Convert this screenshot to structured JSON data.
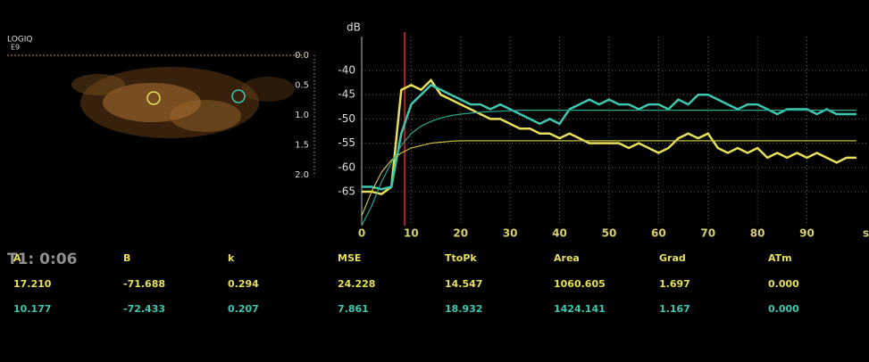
{
  "image": {
    "brand": "LOGIQ",
    "model": "E9",
    "depth_labels": [
      "0.0",
      "0.5",
      "1.0",
      "1.5",
      "2.0"
    ]
  },
  "chart_data": {
    "type": "line",
    "ylabel": "dB",
    "xlabel": "s",
    "x": [
      0,
      2,
      4,
      6,
      8,
      10,
      12,
      14,
      16,
      18,
      20,
      22,
      24,
      26,
      28,
      30,
      32,
      34,
      36,
      38,
      40,
      42,
      44,
      46,
      48,
      50,
      52,
      54,
      56,
      58,
      60,
      62,
      64,
      66,
      68,
      70,
      72,
      74,
      76,
      78,
      80,
      82,
      84,
      86,
      88,
      90,
      92,
      94,
      96,
      98,
      100
    ],
    "series": [
      {
        "color": "#e6e05a",
        "values": [
          -65,
          -65,
          -65.5,
          -64,
          -44,
          -43,
          -44,
          -42,
          -45,
          -46,
          -47,
          -48,
          -49,
          -50,
          -50,
          -51,
          -52,
          -52,
          -53,
          -53,
          -54,
          -53,
          -54,
          -55,
          -55,
          -55,
          -55,
          -56,
          -55,
          -56,
          -57,
          -56,
          -54,
          -53,
          -54,
          -53,
          -56,
          -57,
          -56,
          -57,
          -56,
          -58,
          -57,
          -58,
          -57,
          -58,
          -57,
          -58,
          -59,
          -58,
          -58
        ]
      },
      {
        "color": "#3cc8b0",
        "values": [
          -64,
          -64,
          -64.5,
          -64,
          -53,
          -47,
          -45,
          -43,
          -44,
          -45,
          -46,
          -47,
          -47,
          -48,
          -47,
          -48,
          -49,
          -50,
          -51,
          -50,
          -51,
          -48,
          -47,
          -46,
          -47,
          -46,
          -47,
          -47,
          -48,
          -47,
          -47,
          -48,
          -46,
          -47,
          -45,
          -45,
          -46,
          -47,
          -48,
          -47,
          -47,
          -48,
          -49,
          -48,
          -48,
          -48,
          -49,
          -48,
          -49,
          -49,
          -49
        ]
      },
      {
        "color": "#c8c040",
        "values": [
          -70,
          -65,
          -61,
          -58.5,
          -57,
          -56,
          -55.5,
          -55,
          -54.8,
          -54.6,
          -54.5,
          -54.5,
          -54.5,
          -54.5,
          -54.5,
          -54.5,
          -54.5,
          -54.5,
          -54.5,
          -54.5,
          -54.5,
          -54.5,
          -54.5,
          -54.5,
          -54.5,
          -54.5,
          -54.5,
          -54.5,
          -54.5,
          -54.5,
          -54.5,
          -54.5,
          -54.5,
          -54.5,
          -54.5,
          -54.5,
          -54.5,
          -54.5,
          -54.5,
          -54.5,
          -54.5,
          -54.5,
          -54.5,
          -54.5,
          -54.5,
          -54.5,
          -54.5,
          -54.5,
          -54.5,
          -54.5,
          -54.5
        ]
      },
      {
        "color": "#2aa890",
        "values": [
          -72,
          -68,
          -63,
          -59,
          -55.5,
          -53,
          -51.5,
          -50.5,
          -49.8,
          -49.3,
          -49,
          -48.8,
          -48.6,
          -48.5,
          -48.4,
          -48.3,
          -48.2,
          -48.2,
          -48.2,
          -48.2,
          -48.2,
          -48.2,
          -48.2,
          -48.2,
          -48.2,
          -48.2,
          -48.2,
          -48.2,
          -48.2,
          -48.2,
          -48.2,
          -48.2,
          -48.2,
          -48.2,
          -48.2,
          -48.2,
          -48.2,
          -48.2,
          -48.2,
          -48.2,
          -48.2,
          -48.2,
          -48.2,
          -48.2,
          -48.2,
          -48.2,
          -48.2,
          -48.2,
          -48.2,
          -48.2,
          -48.2
        ]
      }
    ],
    "marker_x": 8.7,
    "marker_color": "#b02828",
    "xlim": [
      0,
      102
    ],
    "ylim": [
      -72,
      -33
    ],
    "xticks": [
      0,
      10,
      20,
      30,
      40,
      50,
      60,
      70,
      80,
      90
    ],
    "yticks": [
      -40,
      -45,
      -50,
      -55,
      -60,
      -65
    ],
    "grid": true
  },
  "table": {
    "header": "T1: 0:06",
    "columns": [
      "A",
      "B",
      "k",
      "MSE",
      "TtoPk",
      "Area",
      "Grad",
      "ATm"
    ],
    "rows": [
      [
        "17.210",
        "-71.688",
        "0.294",
        "24.228",
        "14.547",
        "1060.605",
        "1.697",
        "0.000"
      ],
      [
        "10.177",
        "-72.433",
        "0.207",
        "7.861",
        "18.932",
        "1424.141",
        "1.167",
        "0.000"
      ]
    ]
  }
}
